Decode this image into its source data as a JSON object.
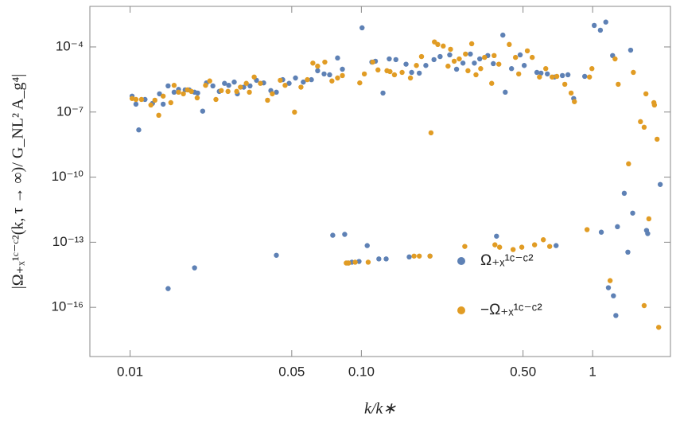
{
  "chart_data": {
    "type": "scatter",
    "x_label": "k/k∗",
    "y_label": "|Ω₊ₓ¹ᶜ⁻ᶜ²(k, τ → ∞)/ G_NL² A_g⁴|",
    "xscale": "log",
    "yscale": "log",
    "xlim": [
      0.0067,
      2.17
    ],
    "ylim": [
      5.4e-19,
      0.0074
    ],
    "xticks": [
      0.01,
      0.05,
      {
        "value": 0.1,
        "label": "0.10"
      },
      {
        "value": 0.5,
        "label": "0.50"
      },
      1
    ],
    "yticks": [
      {
        "value": 1e-16,
        "label": "10⁻¹⁶"
      },
      {
        "value": 1e-13,
        "label": "10⁻¹³"
      },
      {
        "value": 1e-10,
        "label": "10⁻¹⁰"
      },
      {
        "value": 1e-07,
        "label": "10⁻⁷"
      },
      {
        "value": 0.0001,
        "label": "10⁻⁴"
      }
    ],
    "legend": "center-right",
    "series": [
      {
        "name": "Ω₊ₓ¹ᶜ⁻ᶜ²",
        "color": "#5e81b5",
        "x": [
          0.0102,
          0.0106,
          0.0109,
          0.0116,
          0.0125,
          0.0134,
          0.0139,
          0.0146,
          0.0155,
          0.0162,
          0.0173,
          0.018,
          0.019,
          0.0196,
          0.0206,
          0.0214,
          0.0228,
          0.0243,
          0.0256,
          0.0267,
          0.0282,
          0.0291,
          0.031,
          0.033,
          0.0352,
          0.0378,
          0.0406,
          0.0429,
          0.0457,
          0.0487,
          0.0519,
          0.0561,
          0.0608,
          0.0647,
          0.069,
          0.0729,
          0.0789,
          0.0828,
          0.1007,
          0.111,
          0.115,
          0.124,
          0.132,
          0.141,
          0.156,
          0.165,
          0.178,
          0.19,
          0.206,
          0.219,
          0.241,
          0.258,
          0.275,
          0.296,
          0.308,
          0.325,
          0.352,
          0.372,
          0.409,
          0.419,
          0.446,
          0.486,
          0.506,
          0.574,
          0.598,
          0.637,
          0.684,
          0.74,
          0.782,
          0.828,
          0.924,
          1.016,
          1.08,
          1.14,
          1.22,
          1.46,
          0.0146,
          0.019,
          0.0429,
          0.0752,
          0.0847,
          0.106,
          0.0875,
          0.091,
          0.0977,
          0.119,
          0.128,
          0.161,
          0.198,
          0.384,
          0.695,
          1.09,
          1.17,
          1.23,
          1.26,
          1.28,
          1.37,
          1.42,
          1.49,
          1.71,
          1.73,
          1.96
        ],
        "values": [
          5.4e-07,
          2.3e-07,
          1.5e-08,
          3.8e-07,
          2.5e-07,
          6.9e-07,
          2.3e-07,
          1.6e-06,
          8.2e-07,
          1.1e-06,
          1.05e-06,
          1.05e-06,
          8.2e-07,
          7.5e-07,
          1.1e-07,
          2.2e-06,
          1.6e-06,
          8.9e-07,
          2.1e-06,
          1.7e-06,
          2.4e-06,
          6.9e-07,
          1.4e-06,
          1.6e-06,
          2.9e-06,
          2.2e-06,
          9.7e-07,
          8.2e-07,
          3.1e-06,
          2.1e-06,
          3.7e-06,
          2.4e-06,
          3.1e-06,
          8e-06,
          5.7e-06,
          5.2e-06,
          3.1e-05,
          9.4e-06,
          0.00076,
          2e-05,
          2.2e-05,
          7.5e-07,
          2.8e-05,
          2.6e-05,
          1.6e-05,
          6.7e-06,
          6.2e-06,
          1.4e-05,
          2.6e-05,
          3.6e-05,
          4.3e-05,
          9.4e-06,
          1.8e-05,
          4.7e-05,
          1.8e-05,
          2.8e-05,
          4e-05,
          1.7e-05,
          0.00035,
          8.2e-07,
          1e-05,
          4.3e-05,
          1.4e-05,
          6.7e-06,
          6.2e-06,
          5.7e-06,
          4.1e-06,
          4.8e-06,
          5.2e-06,
          4.2e-07,
          4.4e-06,
          0.00098,
          0.00059,
          0.0014,
          4e-05,
          7.1e-05,
          7.3e-16,
          6.6e-15,
          2.5e-14,
          2.1e-13,
          2.3e-13,
          7e-14,
          1.1e-14,
          1.2e-14,
          1.3e-14,
          1.7e-14,
          1.7e-14,
          2.1e-14,
          2.3e-14,
          1.9e-13,
          7e-14,
          2.9e-13,
          8e-16,
          3.4e-16,
          4.2e-17,
          5.2e-13,
          1.8e-11,
          3.5e-14,
          2.2e-12,
          3.5e-13,
          2.5e-13,
          4.6e-11
        ]
      },
      {
        "name": "−Ω₊ₓ¹ᶜ⁻ᶜ²",
        "color": "#e19c24",
        "x": [
          0.0102,
          0.0106,
          0.0112,
          0.0123,
          0.0128,
          0.0133,
          0.0139,
          0.015,
          0.0155,
          0.0162,
          0.017,
          0.0177,
          0.0184,
          0.0195,
          0.0212,
          0.0221,
          0.0235,
          0.0248,
          0.0265,
          0.0289,
          0.03,
          0.0318,
          0.0328,
          0.0344,
          0.0366,
          0.0393,
          0.0412,
          0.0446,
          0.0468,
          0.0514,
          0.0548,
          0.0584,
          0.0617,
          0.0647,
          0.0695,
          0.0746,
          0.0789,
          0.0828,
          0.0984,
          0.103,
          0.112,
          0.118,
          0.129,
          0.133,
          0.139,
          0.15,
          0.163,
          0.173,
          0.182,
          0.2,
          0.207,
          0.214,
          0.226,
          0.237,
          0.243,
          0.252,
          0.265,
          0.282,
          0.289,
          0.3,
          0.313,
          0.328,
          0.341,
          0.366,
          0.375,
          0.393,
          0.436,
          0.464,
          0.479,
          0.522,
          0.548,
          0.589,
          0.627,
          0.668,
          0.7,
          0.758,
          0.807,
          0.834,
          0.969,
          0.993,
          1.25,
          1.29,
          1.43,
          1.5,
          1.61,
          1.67,
          1.7,
          1.75,
          1.84,
          1.85,
          1.9,
          1.67,
          1.93,
          0.086,
          0.0881,
          0.094,
          0.107,
          0.169,
          0.178,
          0.198,
          0.28,
          0.378,
          0.396,
          0.453,
          0.494,
          0.561,
          0.612,
          0.652,
          0.946,
          1.19
        ],
        "values": [
          4.2e-07,
          3.8e-07,
          3.8e-07,
          2.1e-07,
          3.5e-07,
          7.1e-08,
          5.4e-07,
          2.7e-07,
          1.7e-06,
          8.2e-07,
          6.9e-07,
          1.05e-06,
          8.9e-07,
          4.5e-07,
          1.7e-06,
          2.7e-06,
          3.8e-07,
          9.7e-07,
          8.9e-07,
          8.9e-07,
          1.4e-06,
          2.1e-06,
          8.2e-07,
          4.1e-06,
          2.1e-06,
          3.5e-07,
          6.9e-07,
          2.9e-06,
          1.7e-06,
          9.9e-08,
          1.4e-06,
          3.1e-06,
          1.8e-05,
          1.3e-05,
          2e-05,
          2.7e-06,
          3.7e-06,
          4.8e-06,
          2.2e-06,
          5.7e-06,
          2e-05,
          8.7e-06,
          8e-06,
          7.3e-06,
          5.2e-06,
          6.7e-06,
          3.7e-06,
          1.4e-05,
          3.6e-05,
          1.1e-08,
          0.00017,
          0.00013,
          0.00011,
          1.3e-05,
          7.8e-05,
          2.2e-05,
          2.8e-05,
          4.7e-05,
          8e-06,
          0.00014,
          5.2e-06,
          1e-05,
          3.3e-05,
          2.1e-06,
          4e-05,
          1.6e-05,
          0.00013,
          3.3e-05,
          5.7e-06,
          6.6e-05,
          3.3e-05,
          4.1e-06,
          1e-05,
          4.1e-06,
          4.4e-06,
          1.9e-06,
          7.5e-07,
          3e-07,
          4.1e-06,
          1e-05,
          2.8e-05,
          1.9e-06,
          4.1e-10,
          6.7e-06,
          3.6e-08,
          2e-08,
          6.9e-07,
          1.2e-12,
          2.7e-07,
          2.1e-07,
          5.6e-09,
          1.2e-16,
          1.2e-17,
          1.1e-14,
          1.1e-14,
          1.2e-14,
          1.2e-14,
          2.3e-14,
          2.3e-14,
          2.3e-14,
          6.4e-14,
          7.6e-14,
          5.9e-14,
          4.6e-14,
          5.9e-14,
          7.6e-14,
          1.3e-13,
          6.4e-14,
          3.8e-13,
          1.7e-15
        ]
      }
    ]
  }
}
